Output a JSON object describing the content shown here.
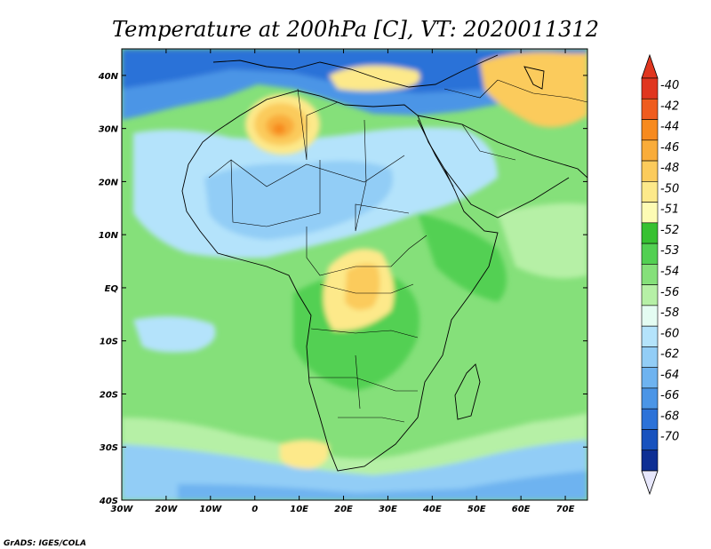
{
  "title": "Temperature at 200hPa [C], VT: 2020011312",
  "credit": "GrADS: IGES/COLA",
  "map": {
    "lon_range": [
      -30,
      75
    ],
    "lat_range": [
      -40,
      45
    ],
    "x_ticks": [
      "30W",
      "20W",
      "10W",
      "0",
      "10E",
      "20E",
      "30E",
      "40E",
      "50E",
      "60E",
      "70E"
    ],
    "x_tick_values": [
      -30,
      -20,
      -10,
      0,
      10,
      20,
      30,
      40,
      50,
      60,
      70
    ],
    "y_ticks": [
      "40S",
      "30S",
      "20S",
      "10S",
      "EQ",
      "10N",
      "20N",
      "30N",
      "40N"
    ],
    "y_tick_values": [
      -40,
      -30,
      -20,
      -10,
      0,
      10,
      20,
      30,
      40
    ]
  },
  "colorbar": {
    "labels": [
      "-40",
      "-42",
      "-44",
      "-46",
      "-48",
      "-50",
      "-51",
      "-52",
      "-53",
      "-54",
      "-56",
      "-58",
      "-60",
      "-62",
      "-64",
      "-66",
      "-68",
      "-70"
    ],
    "colors": [
      "#e0361f",
      "#ef5c1e",
      "#f78a1e",
      "#f9ac3a",
      "#fbcb5c",
      "#fde98a",
      "#fdfbb4",
      "#37c131",
      "#52d052",
      "#85e07a",
      "#b6f0a6",
      "#e4fcf2",
      "#b4e3fb",
      "#92cdf6",
      "#6eb3f0",
      "#4b95e6",
      "#2c72d8",
      "#1852be",
      "#0e2f94"
    ],
    "top_color": "#e0361f",
    "bottom_color": "#e7e7fb"
  }
}
